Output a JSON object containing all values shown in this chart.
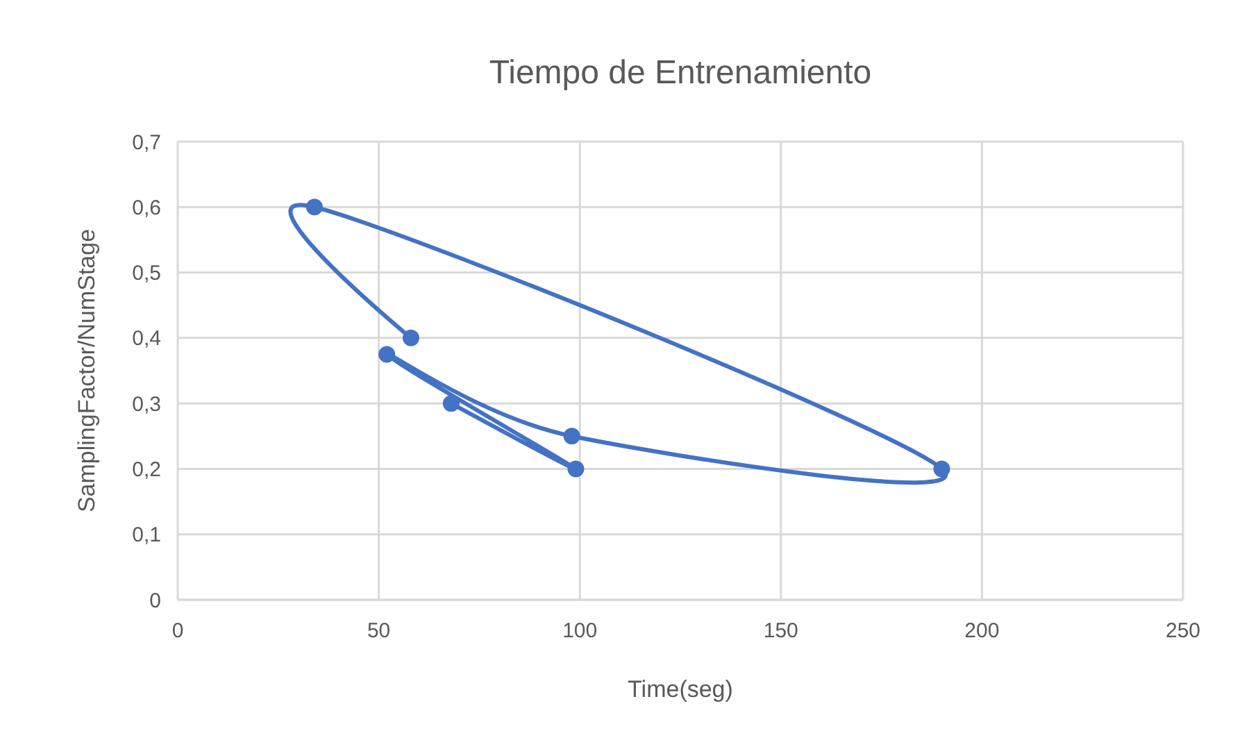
{
  "chart_data": {
    "type": "line",
    "title": "Tiempo de Entrenamiento",
    "xlabel": "Time(seg)",
    "ylabel": "SamplingFactor/NumStage",
    "x": [
      58,
      34,
      190,
      98,
      52,
      99,
      68
    ],
    "series": [
      {
        "color": "#4472c4",
        "values": [
          0.4,
          0.6,
          0.2,
          0.25,
          0.375,
          0.2,
          0.3
        ]
      }
    ],
    "xlim": [
      0,
      250
    ],
    "xticks": [
      0,
      50,
      100,
      150,
      200,
      250
    ],
    "ylim": [
      0,
      0.7
    ],
    "yticks": [
      {
        "value": 0,
        "label": "0"
      },
      {
        "value": 0.1,
        "label": "0,1"
      },
      {
        "value": 0.2,
        "label": "0,2"
      },
      {
        "value": 0.3,
        "label": "0,3"
      },
      {
        "value": 0.4,
        "label": "0,4"
      },
      {
        "value": 0.5,
        "label": "0,5"
      },
      {
        "value": 0.6,
        "label": "0,6"
      },
      {
        "value": 0.7,
        "label": "0,7"
      }
    ],
    "grid": true,
    "marker": "circle",
    "line_style": "solid"
  }
}
